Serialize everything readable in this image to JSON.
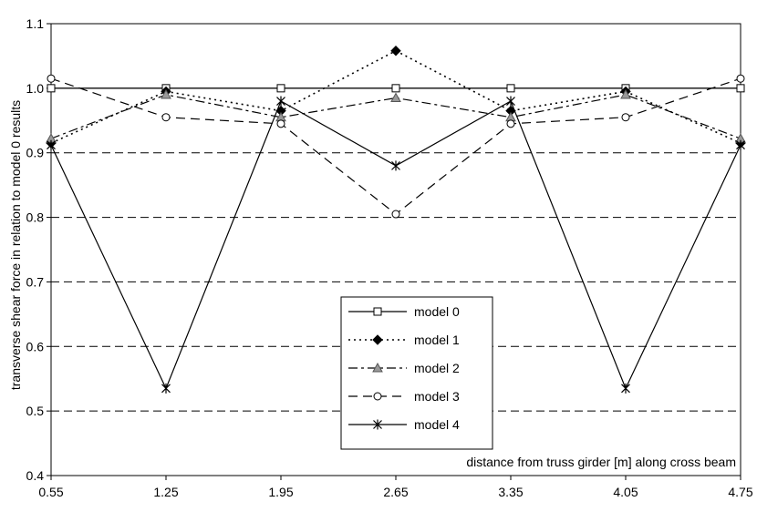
{
  "chart_data": {
    "type": "line",
    "title": "",
    "xlabel": "distance from truss girder [m] along cross beam",
    "ylabel": "transverse shear force in relation to model 0 results",
    "x": [
      0.55,
      1.25,
      1.95,
      2.65,
      3.35,
      4.05,
      4.75
    ],
    "x_tick_labels": [
      "0.55",
      "1.25",
      "1.95",
      "2.65",
      "3.35",
      "4.05",
      "4.75"
    ],
    "ylim": [
      0.4,
      1.1
    ],
    "y_ticks": [
      0.4,
      0.5,
      0.6,
      0.7,
      0.8,
      0.9,
      1.0,
      1.1
    ],
    "y_tick_labels": [
      "0.4",
      "0.5",
      "0.6",
      "0.7",
      "0.8",
      "0.9",
      "1.0",
      "1.1"
    ],
    "grid": "horizontal dashed",
    "legend_position": "center-bottom",
    "series": [
      {
        "name": "model 0",
        "marker": "square-open",
        "line": "solid",
        "values": [
          1.0,
          1.0,
          1.0,
          1.0,
          1.0,
          1.0,
          1.0
        ]
      },
      {
        "name": "model 1",
        "marker": "diamond-filled",
        "line": "dotted",
        "values": [
          0.915,
          0.995,
          0.965,
          1.058,
          0.965,
          0.995,
          0.915
        ]
      },
      {
        "name": "model 2",
        "marker": "triangle-gray",
        "line": "dashdot",
        "values": [
          0.922,
          0.99,
          0.955,
          0.985,
          0.955,
          0.99,
          0.922
        ]
      },
      {
        "name": "model 3",
        "marker": "circle-open",
        "line": "dashed",
        "values": [
          1.015,
          0.955,
          0.945,
          0.805,
          0.945,
          0.955,
          1.015
        ]
      },
      {
        "name": "model 4",
        "marker": "asterisk",
        "line": "solid",
        "values": [
          0.912,
          0.535,
          0.98,
          0.88,
          0.98,
          0.535,
          0.912
        ]
      }
    ]
  }
}
